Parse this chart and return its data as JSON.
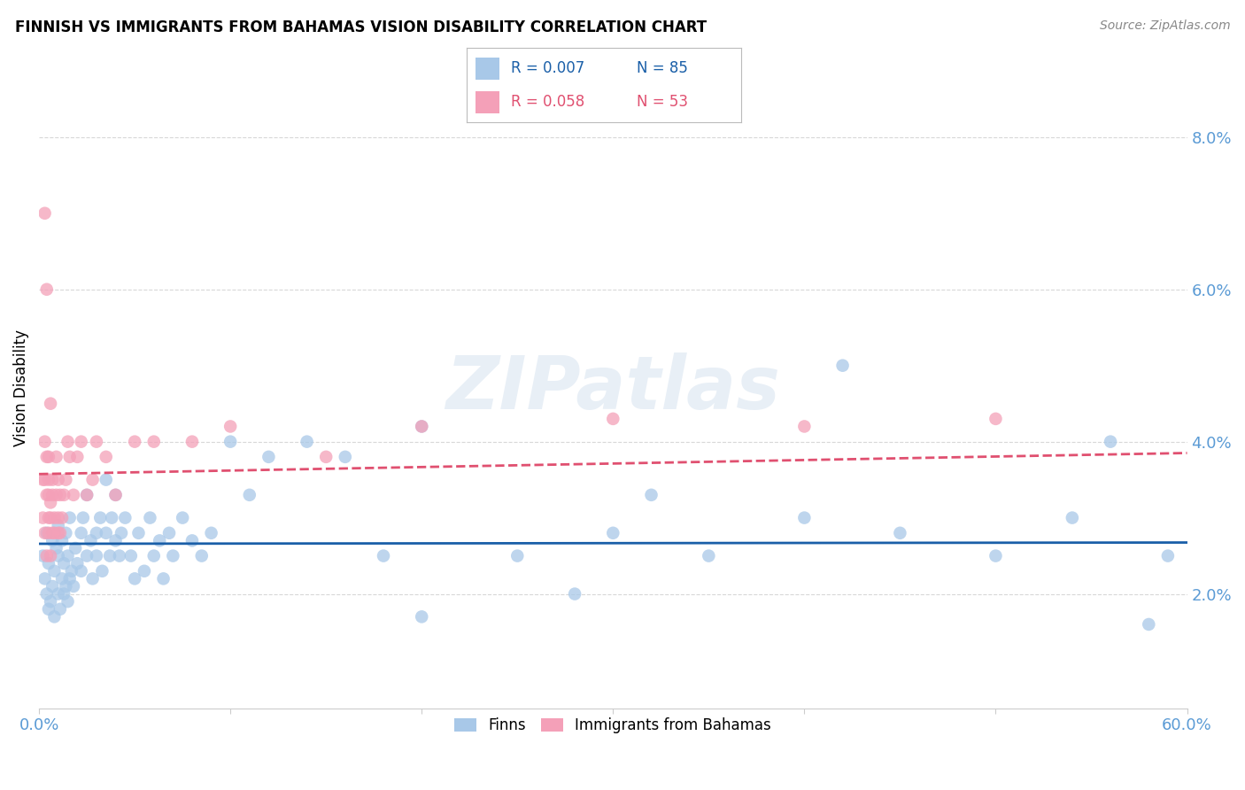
{
  "title": "FINNISH VS IMMIGRANTS FROM BAHAMAS VISION DISABILITY CORRELATION CHART",
  "source": "Source: ZipAtlas.com",
  "ylabel": "Vision Disability",
  "watermark": "ZIPatlas",
  "finns_color": "#a8c8e8",
  "immigrants_color": "#f4a0b8",
  "trendline_finns_color": "#1a5fa8",
  "trendline_immigrants_color": "#e05070",
  "ylim_low": 0.005,
  "ylim_high": 0.089,
  "xlim_low": 0.0,
  "xlim_high": 0.6,
  "yticks": [
    0.02,
    0.04,
    0.06,
    0.08
  ],
  "ytick_labels": [
    "2.0%",
    "4.0%",
    "6.0%",
    "8.0%"
  ],
  "background_color": "#ffffff",
  "grid_color": "#d8d8d8",
  "axis_color": "#5b9bd5",
  "legend_R_finns": "R = 0.007",
  "legend_N_finns": "N = 85",
  "legend_R_immigrants": "R = 0.058",
  "legend_N_immigrants": "N = 53",
  "finns_x": [
    0.002,
    0.003,
    0.004,
    0.004,
    0.005,
    0.005,
    0.006,
    0.007,
    0.007,
    0.008,
    0.008,
    0.009,
    0.01,
    0.01,
    0.01,
    0.011,
    0.012,
    0.012,
    0.013,
    0.013,
    0.014,
    0.014,
    0.015,
    0.015,
    0.016,
    0.016,
    0.017,
    0.018,
    0.019,
    0.02,
    0.022,
    0.022,
    0.023,
    0.025,
    0.025,
    0.027,
    0.028,
    0.03,
    0.03,
    0.032,
    0.033,
    0.035,
    0.035,
    0.037,
    0.038,
    0.04,
    0.04,
    0.042,
    0.043,
    0.045,
    0.048,
    0.05,
    0.052,
    0.055,
    0.058,
    0.06,
    0.063,
    0.065,
    0.068,
    0.07,
    0.075,
    0.08,
    0.085,
    0.09,
    0.1,
    0.11,
    0.12,
    0.14,
    0.16,
    0.18,
    0.2,
    0.25,
    0.3,
    0.35,
    0.4,
    0.45,
    0.5,
    0.54,
    0.56,
    0.58,
    0.59,
    0.2,
    0.28,
    0.32,
    0.42
  ],
  "finns_y": [
    0.025,
    0.022,
    0.02,
    0.028,
    0.018,
    0.024,
    0.019,
    0.021,
    0.027,
    0.017,
    0.023,
    0.026,
    0.02,
    0.025,
    0.029,
    0.018,
    0.022,
    0.027,
    0.02,
    0.024,
    0.021,
    0.028,
    0.019,
    0.025,
    0.022,
    0.03,
    0.023,
    0.021,
    0.026,
    0.024,
    0.028,
    0.023,
    0.03,
    0.025,
    0.033,
    0.027,
    0.022,
    0.028,
    0.025,
    0.03,
    0.023,
    0.028,
    0.035,
    0.025,
    0.03,
    0.027,
    0.033,
    0.025,
    0.028,
    0.03,
    0.025,
    0.022,
    0.028,
    0.023,
    0.03,
    0.025,
    0.027,
    0.022,
    0.028,
    0.025,
    0.03,
    0.027,
    0.025,
    0.028,
    0.04,
    0.033,
    0.038,
    0.04,
    0.038,
    0.025,
    0.042,
    0.025,
    0.028,
    0.025,
    0.03,
    0.028,
    0.025,
    0.03,
    0.04,
    0.016,
    0.025,
    0.017,
    0.02,
    0.033,
    0.05
  ],
  "immigrants_x": [
    0.002,
    0.002,
    0.003,
    0.003,
    0.003,
    0.004,
    0.004,
    0.004,
    0.005,
    0.005,
    0.005,
    0.005,
    0.005,
    0.006,
    0.006,
    0.006,
    0.007,
    0.007,
    0.007,
    0.008,
    0.008,
    0.009,
    0.009,
    0.01,
    0.01,
    0.01,
    0.011,
    0.011,
    0.012,
    0.013,
    0.014,
    0.015,
    0.016,
    0.018,
    0.02,
    0.022,
    0.025,
    0.028,
    0.03,
    0.035,
    0.04,
    0.05,
    0.06,
    0.08,
    0.1,
    0.15,
    0.2,
    0.3,
    0.4,
    0.5,
    0.003,
    0.004,
    0.006
  ],
  "immigrants_y": [
    0.035,
    0.03,
    0.035,
    0.04,
    0.028,
    0.033,
    0.025,
    0.038,
    0.033,
    0.03,
    0.028,
    0.035,
    0.038,
    0.03,
    0.025,
    0.032,
    0.028,
    0.033,
    0.035,
    0.03,
    0.028,
    0.033,
    0.038,
    0.03,
    0.028,
    0.035,
    0.033,
    0.028,
    0.03,
    0.033,
    0.035,
    0.04,
    0.038,
    0.033,
    0.038,
    0.04,
    0.033,
    0.035,
    0.04,
    0.038,
    0.033,
    0.04,
    0.04,
    0.04,
    0.042,
    0.038,
    0.042,
    0.043,
    0.042,
    0.043,
    0.07,
    0.06,
    0.045
  ]
}
